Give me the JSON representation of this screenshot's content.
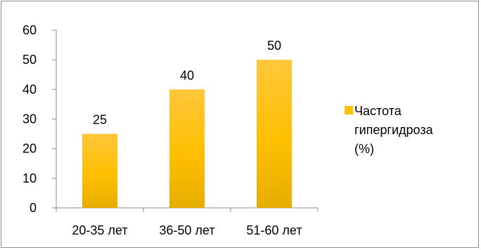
{
  "chart_data": {
    "type": "bar",
    "categories": [
      "20-35 лет",
      "36-50 лет",
      "51-60 лет"
    ],
    "series": [
      {
        "name": "Частота гипергидроза (%)",
        "values": [
          25,
          40,
          50
        ],
        "color": "#ffc000"
      }
    ],
    "y_ticks": [
      "0",
      "10",
      "20",
      "30",
      "40",
      "50",
      "60"
    ],
    "ylim": [
      0,
      60
    ],
    "grid": false,
    "legend_placement": "right",
    "legend_lines": [
      "Частота",
      "гипергидроза",
      "(%)"
    ],
    "title": "",
    "xlabel": "",
    "ylabel": ""
  }
}
